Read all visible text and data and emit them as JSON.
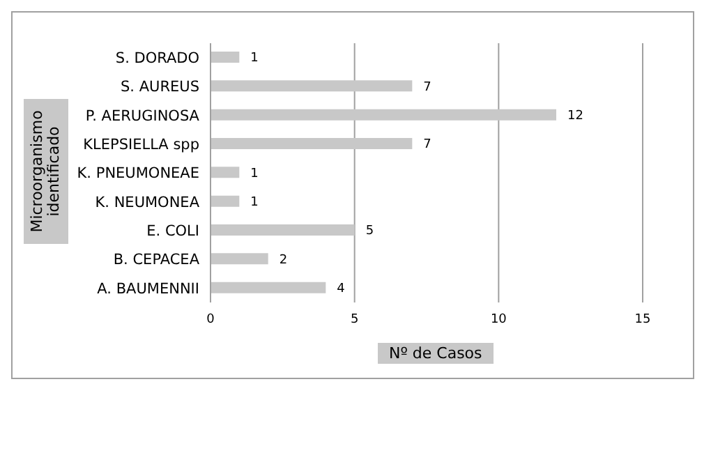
{
  "chart_data": {
    "type": "bar",
    "orientation": "horizontal",
    "categories": [
      "S. DORADO",
      "S. AUREUS",
      "P. AERUGINOSA",
      "KLEPSIELLA spp",
      "K. PNEUMONEAE",
      "K. NEUMONEA",
      "E. COLI",
      "B. CEPACEA",
      "A. BAUMENNII"
    ],
    "values": [
      1,
      7,
      12,
      7,
      1,
      1,
      5,
      2,
      4
    ],
    "color": "#c8c8c8",
    "xlabel": "Nº de Casos",
    "ylabel": "Microorganismo identificado",
    "xlim": [
      0,
      15
    ],
    "xticks": [
      0,
      5,
      10,
      15
    ],
    "grid": "x",
    "data_labels": true
  }
}
